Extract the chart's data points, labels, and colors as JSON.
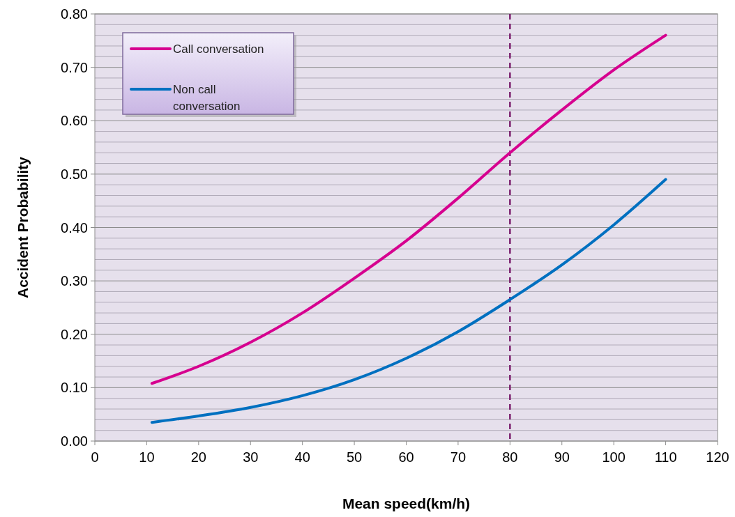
{
  "chart_data": {
    "type": "line",
    "xlabel": "Mean speed(km/h)",
    "ylabel": "Accident Probability",
    "x": [
      11,
      20,
      30,
      40,
      50,
      60,
      70,
      80,
      90,
      100,
      110
    ],
    "series": [
      {
        "name": "Call conversation",
        "color": "#d6008f",
        "values": [
          0.108,
          0.14,
          0.185,
          0.24,
          0.305,
          0.375,
          0.455,
          0.54,
          0.62,
          0.695,
          0.76
        ]
      },
      {
        "name": "Non call conversation",
        "color": "#0070c0",
        "values": [
          0.035,
          0.047,
          0.063,
          0.085,
          0.115,
          0.155,
          0.205,
          0.265,
          0.33,
          0.405,
          0.49
        ]
      }
    ],
    "xlim": [
      0,
      120
    ],
    "xticks": [
      0,
      10,
      20,
      30,
      40,
      50,
      60,
      70,
      80,
      90,
      100,
      110,
      120
    ],
    "ylim": [
      0,
      0.8
    ],
    "yticks": [
      {
        "value": 0,
        "label": "0.00"
      },
      {
        "value": 0.02,
        "label": null
      },
      {
        "value": 0.04,
        "label": null
      },
      {
        "value": 0.06,
        "label": null
      },
      {
        "value": 0.08,
        "label": null
      },
      {
        "value": 0.1,
        "label": "0.10"
      },
      {
        "value": 0.12,
        "label": null
      },
      {
        "value": 0.14,
        "label": null
      },
      {
        "value": 0.16,
        "label": null
      },
      {
        "value": 0.18,
        "label": null
      },
      {
        "value": 0.2,
        "label": "0.20"
      },
      {
        "value": 0.22,
        "label": null
      },
      {
        "value": 0.24,
        "label": null
      },
      {
        "value": 0.26,
        "label": null
      },
      {
        "value": 0.28,
        "label": null
      },
      {
        "value": 0.3,
        "label": "0.30"
      },
      {
        "value": 0.32,
        "label": null
      },
      {
        "value": 0.34,
        "label": null
      },
      {
        "value": 0.36,
        "label": null
      },
      {
        "value": 0.38,
        "label": null
      },
      {
        "value": 0.4,
        "label": "0.40"
      },
      {
        "value": 0.42,
        "label": null
      },
      {
        "value": 0.44,
        "label": null
      },
      {
        "value": 0.46,
        "label": null
      },
      {
        "value": 0.48,
        "label": null
      },
      {
        "value": 0.5,
        "label": "0.50"
      },
      {
        "value": 0.52,
        "label": null
      },
      {
        "value": 0.54,
        "label": null
      },
      {
        "value": 0.56,
        "label": null
      },
      {
        "value": 0.58,
        "label": null
      },
      {
        "value": 0.6,
        "label": "0.60"
      },
      {
        "value": 0.62,
        "label": null
      },
      {
        "value": 0.64,
        "label": null
      },
      {
        "value": 0.66,
        "label": null
      },
      {
        "value": 0.68,
        "label": null
      },
      {
        "value": 0.7,
        "label": "0.70"
      },
      {
        "value": 0.72,
        "label": null
      },
      {
        "value": 0.74,
        "label": null
      },
      {
        "value": 0.76,
        "label": null
      },
      {
        "value": 0.78,
        "label": null
      },
      {
        "value": 0.8,
        "label": "0.80"
      }
    ],
    "grid": "y",
    "legend": "top left",
    "marker": "none",
    "line_style": "solid",
    "ref_lines": [
      {
        "axis": "x",
        "value": 80,
        "color": "#7b1f6e",
        "line_style": "dashed"
      }
    ]
  }
}
